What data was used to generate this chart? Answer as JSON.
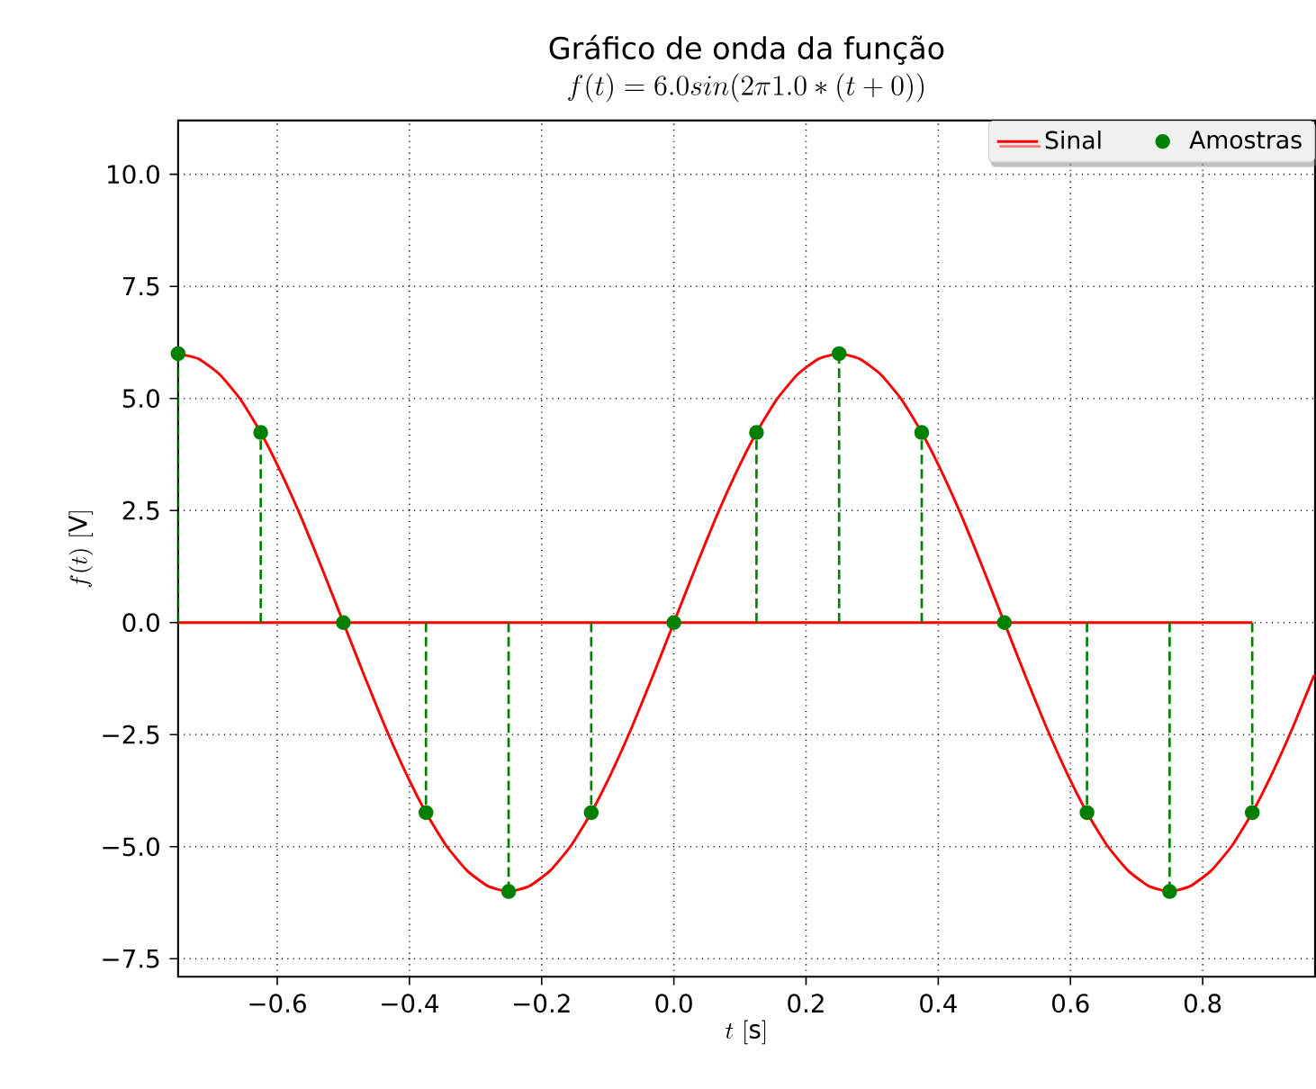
{
  "chart_data": {
    "type": "line",
    "title": "Gráfico de onda da função",
    "subtitle": "f(t) = 6.0 sin(2\\pi 1.0 \\ast (t+0))",
    "xlabel": "t\\ [\\mathrm{s}]",
    "ylabel": "f(t)\\ [\\mathrm{V}]",
    "xlim": [
      -0.75,
      0.97
    ],
    "ylim": [
      -7.9,
      11.2
    ],
    "xticks": [
      {
        "value": -0.6,
        "label": "−0.6"
      },
      {
        "value": -0.4,
        "label": "−0.4"
      },
      {
        "value": -0.2,
        "label": "−0.2"
      },
      {
        "value": 0,
        "label": "0.0"
      },
      {
        "value": 0.2,
        "label": "0.2"
      },
      {
        "value": 0.4,
        "label": "0.4"
      },
      {
        "value": 0.6,
        "label": "0.6"
      },
      {
        "value": 0.8,
        "label": "0.8"
      }
    ],
    "yticks": [
      {
        "value": -7.5,
        "label": "−7.5"
      },
      {
        "value": -5,
        "label": "−5.0"
      },
      {
        "value": -2.5,
        "label": "−2.5"
      },
      {
        "value": 0,
        "label": "0.0"
      },
      {
        "value": 2.5,
        "label": "2.5"
      },
      {
        "value": 5,
        "label": "5.0"
      },
      {
        "value": 7.5,
        "label": "7.5"
      },
      {
        "value": 10,
        "label": "10.0"
      }
    ],
    "grid": true,
    "legend": "top right",
    "ref_lines": [
      {
        "axis": "y",
        "value": 0,
        "color": "#ff0000"
      }
    ],
    "series": [
      {
        "name": "Sinal",
        "color": "#ff0000",
        "line_style": "solid",
        "x": [
          -0.75,
          -0.71875,
          -0.6875,
          -0.65625,
          -0.625,
          -0.59375,
          -0.5625,
          -0.53125,
          -0.5,
          -0.46875,
          -0.4375,
          -0.40625,
          -0.375,
          -0.34375,
          -0.3125,
          -0.28125,
          -0.25,
          -0.21875,
          -0.1875,
          -0.15625,
          -0.125,
          -0.09375,
          -0.0625,
          -0.03125,
          0,
          0.03125,
          0.0625,
          0.09375,
          0.125,
          0.15625,
          0.1875,
          0.21875,
          0.25,
          0.28125,
          0.3125,
          0.34375,
          0.375,
          0.40625,
          0.4375,
          0.46875,
          0.5,
          0.53125,
          0.5625,
          0.59375,
          0.625,
          0.65625,
          0.6875,
          0.71875,
          0.75,
          0.78125,
          0.8125,
          0.84375,
          0.875,
          0.90625,
          0.9375,
          0.96875
        ],
        "values": [
          6,
          5.88,
          5.54,
          4.99,
          4.24,
          3.33,
          2.3,
          1.17,
          0,
          -1.17,
          -2.3,
          -3.33,
          -4.24,
          -4.99,
          -5.54,
          -5.88,
          -6,
          -5.88,
          -5.54,
          -4.99,
          -4.24,
          -3.33,
          -2.3,
          -1.17,
          0,
          1.17,
          2.3,
          3.33,
          4.24,
          4.99,
          5.54,
          5.88,
          6,
          5.88,
          5.54,
          4.99,
          4.24,
          3.33,
          2.3,
          1.17,
          0,
          -1.17,
          -2.3,
          -3.33,
          -4.24,
          -4.99,
          -5.54,
          -5.88,
          -6,
          -5.88,
          -5.54,
          -4.99,
          -4.24,
          -3.33,
          -2.3,
          -1.17
        ]
      },
      {
        "name": "Amostras",
        "type": "lollipop",
        "color": "#008000",
        "line_style": "dashed",
        "marker": "circle",
        "x": [
          -0.75,
          -0.625,
          -0.5,
          -0.375,
          -0.25,
          -0.125,
          0,
          0.125,
          0.25,
          0.375,
          0.5,
          0.625,
          0.75,
          0.875
        ],
        "values": [
          6,
          4.24,
          0,
          -4.24,
          -6,
          -4.24,
          0,
          4.24,
          6,
          4.24,
          0,
          -4.24,
          -6,
          -4.24
        ]
      }
    ]
  }
}
